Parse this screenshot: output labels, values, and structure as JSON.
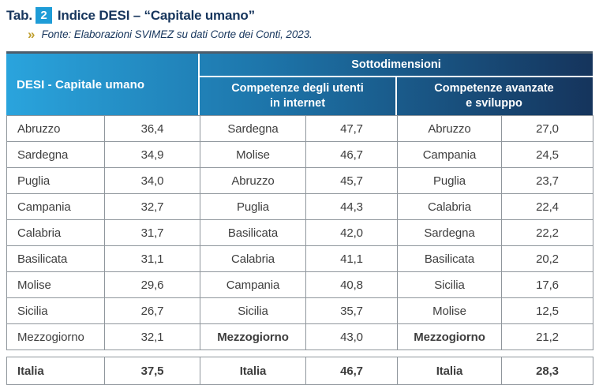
{
  "title": {
    "tab_label": "Tab.",
    "tab_number": "2",
    "text": "Indice DESI – “Capitale umano”"
  },
  "source": {
    "arrow": "»",
    "text": "Fonte: Elaborazioni SVIMEZ su dati Corte dei Conti, 2023."
  },
  "colors": {
    "accent_blue": "#1e9cd7",
    "title_navy": "#17365d",
    "header_gradient_start": "#2aa4dd",
    "header_gradient_end": "#15345c",
    "source_arrow_gold": "#bf9f30",
    "cell_border_gray": "#8f969c"
  },
  "table": {
    "main_header": "DESI - Capitale umano",
    "group_header": "Sottodimensioni",
    "sub_headers": [
      {
        "line1": "Competenze degli utenti",
        "line2": "in internet"
      },
      {
        "line1": "Competenze avanzate",
        "line2": "e sviluppo"
      }
    ],
    "rows": [
      {
        "region1": "Abruzzo",
        "value1": "36,4",
        "region2": "Sardegna",
        "value2": "47,7",
        "region3": "Abruzzo",
        "value3": "27,0"
      },
      {
        "region1": "Sardegna",
        "value1": "34,9",
        "region2": "Molise",
        "value2": "46,7",
        "region3": "Campania",
        "value3": "24,5"
      },
      {
        "region1": "Puglia",
        "value1": "34,0",
        "region2": "Abruzzo",
        "value2": "45,7",
        "region3": "Puglia",
        "value3": "23,7"
      },
      {
        "region1": "Campania",
        "value1": "32,7",
        "region2": "Puglia",
        "value2": "44,3",
        "region3": "Calabria",
        "value3": "22,4"
      },
      {
        "region1": "Calabria",
        "value1": "31,7",
        "region2": "Basilicata",
        "value2": "42,0",
        "region3": "Sardegna",
        "value3": "22,2"
      },
      {
        "region1": "Basilicata",
        "value1": "31,1",
        "region2": "Calabria",
        "value2": "41,1",
        "region3": "Basilicata",
        "value3": "20,2"
      },
      {
        "region1": "Molise",
        "value1": "29,6",
        "region2": "Campania",
        "value2": "40,8",
        "region3": "Sicilia",
        "value3": "17,6"
      },
      {
        "region1": "Sicilia",
        "value1": "26,7",
        "region2": "Sicilia",
        "value2": "35,7",
        "region3": "Molise",
        "value3": "12,5"
      },
      {
        "region1": "Mezzogiorno",
        "value1": "32,1",
        "region2": "Mezzogiorno",
        "value2": "43,0",
        "region3": "Mezzogiorno",
        "value3": "21,2"
      }
    ],
    "italia": {
      "region1": "Italia",
      "value1": "37,5",
      "region2": "Italia",
      "value2": "46,7",
      "region3": "Italia",
      "value3": "28,3"
    }
  }
}
